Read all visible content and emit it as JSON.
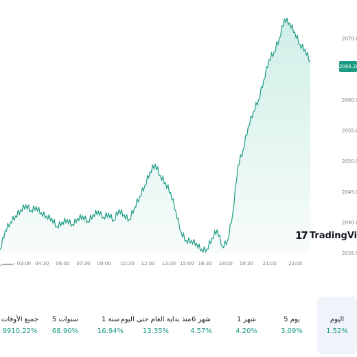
{
  "chart_data": {
    "type": "area",
    "current_price": "2066.20",
    "y_ticks": [
      "2035.00",
      "2040.00",
      "2045.00",
      "2050.00",
      "2055.00",
      "2060.00",
      "2070.00"
    ],
    "y_tick_values": [
      2035,
      2040,
      2045,
      2050,
      2055,
      2060,
      2070
    ],
    "x_ticks": [
      "ديسمبر",
      "03:00",
      "04:30",
      "06:00",
      "07:30",
      "09:00",
      "10:30",
      "12:00",
      "13:30",
      "15:00",
      "16:30",
      "18:00",
      "19:30",
      "21:00",
      "23:00"
    ],
    "ylim": [
      2035,
      2074
    ],
    "x": [
      0,
      0.5,
      1,
      1.5,
      2,
      2.5,
      3,
      3.5,
      4,
      4.5,
      5,
      5.5,
      6,
      6.5,
      7,
      7.5,
      8,
      8.5,
      9,
      9.5,
      10,
      10.5,
      11,
      11.5,
      12,
      12.5,
      13,
      13.5,
      14,
      14.5,
      15,
      15.5,
      16,
      16.5,
      17,
      17.5,
      18,
      18.5,
      19,
      19.5,
      20,
      20.5,
      21,
      21.5,
      22,
      22.5,
      23,
      23.5,
      24,
      24.5,
      25,
      25.5,
      26,
      26.5,
      27,
      27.5,
      28,
      28.5,
      29,
      29.5,
      30
    ],
    "values": [
      2035.5,
      2038.6,
      2040.0,
      2041.0,
      2042.0,
      2042.8,
      2041.9,
      2042.5,
      2041.5,
      2041.0,
      2040.6,
      2039.3,
      2040.0,
      2040.4,
      2039.6,
      2040.6,
      2041.0,
      2040.1,
      2041.2,
      2041.8,
      2040.8,
      2041.4,
      2040.3,
      2042.0,
      2041.2,
      2040.4,
      2042.4,
      2044.2,
      2046.0,
      2048.2,
      2049.5,
      2047.6,
      2046.4,
      2044.8,
      2041.8,
      2038.4,
      2037.0,
      2037.0,
      2036.5,
      2035.5,
      2035.6,
      2037.4,
      2038.8,
      2036.0,
      2037.0,
      2041.4,
      2049.2,
      2051.8,
      2055.6,
      2058.1,
      2060.0,
      2063.2,
      2066.5,
      2067.8,
      2070.0,
      2073.2,
      2072.5,
      2071.0,
      2069.0,
      2068.2,
      2066.2
    ],
    "line_color": "#1c9a83",
    "fill_color": "#cdeee6",
    "grid": false
  },
  "badge": {
    "price": "2066.20"
  },
  "logo": {
    "text": "TradingView",
    "mark": "17"
  },
  "periods": [
    {
      "label": "اليوم",
      "value": "1.52%"
    },
    {
      "label": "5 يوم",
      "value": "3.09%"
    },
    {
      "label": "1 شهر",
      "value": "4.20%"
    },
    {
      "label": "6 شهر",
      "value": "4.57%"
    },
    {
      "label": "منذ بداية العام حتى اليوم",
      "value": "13.35%"
    },
    {
      "label": "1 سنة",
      "value": "16.94%"
    },
    {
      "label": "5 سنوات",
      "value": "68.90%"
    },
    {
      "label": "جميع الأوقات",
      "value": "9910.22%"
    }
  ],
  "colors": {
    "positive": "#1c9a83",
    "active_bg": "#f0f3fa"
  }
}
